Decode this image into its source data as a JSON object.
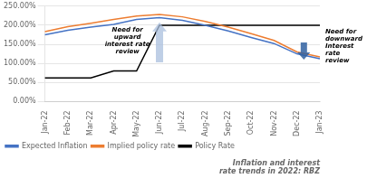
{
  "chart_data": {
    "type": "line",
    "title": "Inflation and interest\nrate trends in 2022: RBZ",
    "categories": [
      "Jan-22",
      "Feb-22",
      "Mar-22",
      "Apr-22",
      "May-22",
      "Jun-22",
      "Jul-22",
      "Aug-22",
      "Sep-22",
      "Oct-22",
      "Nov-22",
      "Dec-22",
      "Jan-23"
    ],
    "series": [
      {
        "name": "Expected Inflation",
        "color": "#4472C4",
        "values": [
          175,
          187,
          195,
          202,
          215,
          220,
          213,
          200,
          185,
          168,
          152,
          125,
          112
        ]
      },
      {
        "name": "Implied policy rate",
        "color": "#ED7D31",
        "values": [
          183,
          196,
          205,
          215,
          224,
          228,
          222,
          210,
          195,
          178,
          160,
          130,
          117
        ]
      },
      {
        "name": "Policy Rate",
        "color": "#000000",
        "values": [
          62,
          62,
          62,
          80,
          80,
          200,
          200,
          200,
          200,
          200,
          200,
          200,
          200
        ]
      }
    ],
    "ylim": [
      0,
      250
    ],
    "yticks": [
      {
        "value": 0,
        "label": "0.00%"
      },
      {
        "value": 50,
        "label": "50.00%"
      },
      {
        "value": 100,
        "label": "100.00%"
      },
      {
        "value": 150,
        "label": "150.00%"
      },
      {
        "value": 200,
        "label": "200.00%"
      },
      {
        "value": 250,
        "label": "250.00%"
      }
    ],
    "grid": true,
    "legend": "bottom",
    "annotations": [
      "Need for\nupward\ninterest rate\nreview",
      "Need for\ndownward\nInterest\nrate\nreview"
    ]
  }
}
